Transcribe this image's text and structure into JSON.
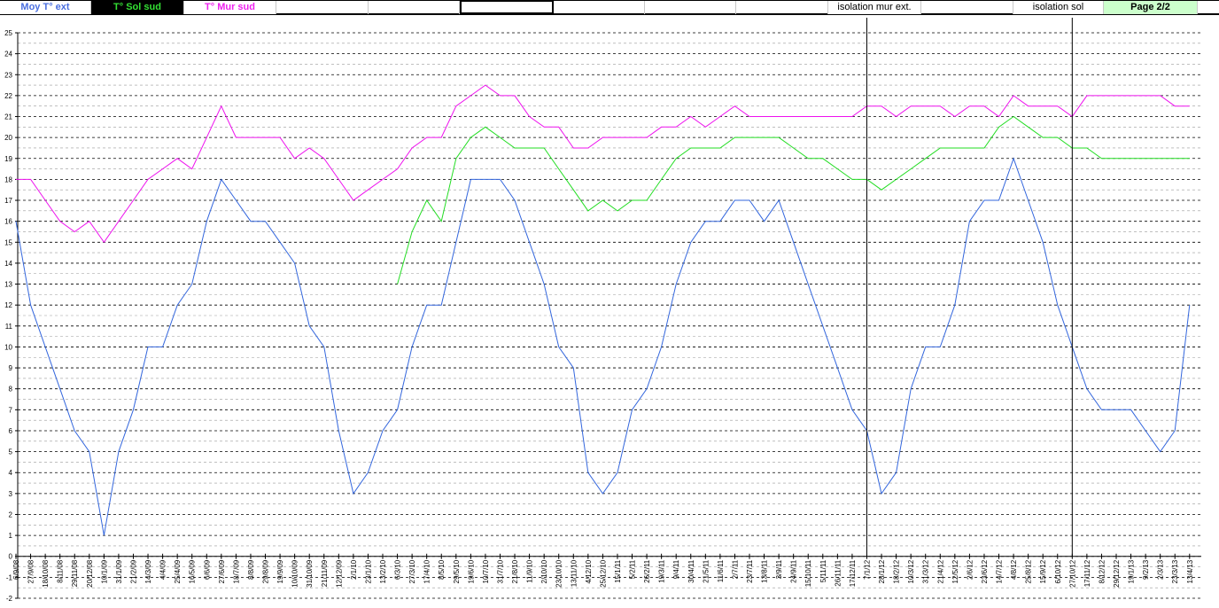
{
  "header": {
    "cells": [
      {
        "label": "Moy T° ext",
        "color": "#4a6fe0",
        "bg": "#ffffff"
      },
      {
        "label": "T° Sol sud",
        "color": "#33e033",
        "bg": "#000000"
      },
      {
        "label": "T° Mur sud",
        "color": "#ee22ee",
        "bg": "#ffffff"
      },
      {
        "label": "isolation mur ext.",
        "color": "#000000",
        "bg": "#ffffff"
      },
      {
        "label": "isolation sol",
        "color": "#000000",
        "bg": "#ffffff"
      },
      {
        "label": "Page 2/2",
        "color": "#000000",
        "bg": "#ccffcc"
      }
    ]
  },
  "chart_data": {
    "type": "line",
    "ylim": [
      -2,
      25
    ],
    "yticks": [
      "-2",
      "-1",
      "0",
      "1",
      "2",
      "3",
      "4",
      "5",
      "6",
      "7",
      "8",
      "9",
      "10",
      "11",
      "12",
      "13",
      "14",
      "15",
      "16",
      "17",
      "18",
      "19",
      "20",
      "21",
      "22",
      "23",
      "24",
      "25"
    ],
    "grid": true,
    "x": [
      "6/9/08",
      "27/9/08",
      "18/10/08",
      "8/11/08",
      "29/11/08",
      "20/12/08",
      "10/1/09",
      "31/1/09",
      "21/2/09",
      "14/3/09",
      "4/4/09",
      "25/4/09",
      "16/5/09",
      "6/6/09",
      "27/6/09",
      "18/7/09",
      "8/8/09",
      "29/8/09",
      "19/9/09",
      "10/10/09",
      "31/10/09",
      "21/11/09",
      "12/12/09",
      "2/1/10",
      "23/1/10",
      "13/2/10",
      "6/3/10",
      "27/3/10",
      "17/4/10",
      "8/5/10",
      "29/5/10",
      "19/6/10",
      "10/7/10",
      "31/7/10",
      "21/8/10",
      "11/9/10",
      "2/10/10",
      "23/10/10",
      "13/11/10",
      "4/12/10",
      "25/12/10",
      "15/1/11",
      "5/2/11",
      "26/2/11",
      "19/3/11",
      "9/4/11",
      "30/4/11",
      "21/5/11",
      "11/6/11",
      "2/7/11",
      "23/7/11",
      "13/8/11",
      "3/9/11",
      "24/9/11",
      "15/10/11",
      "5/11/11",
      "26/11/11",
      "17/12/11",
      "7/1/12",
      "28/1/12",
      "18/2/12",
      "10/3/12",
      "31/3/12",
      "21/4/12",
      "12/5/12",
      "2/6/12",
      "23/6/12",
      "14/7/12",
      "4/8/12",
      "25/8/12",
      "15/9/12",
      "6/10/12",
      "27/10/12",
      "17/11/12",
      "8/12/12",
      "29/12/12",
      "19/1/13",
      "9/2/13",
      "2/3/13",
      "23/3/13",
      "13/4/13"
    ],
    "series": [
      {
        "name": "Moy T° ext",
        "color": "#3366dd",
        "values": [
          16,
          12,
          10,
          8,
          6,
          5,
          1,
          5,
          7,
          10,
          10,
          12,
          13,
          16,
          18,
          17,
          16,
          16,
          15,
          14,
          11,
          10,
          6,
          3,
          4,
          6,
          7,
          10,
          12,
          12,
          15,
          18,
          18,
          18,
          17,
          15,
          13,
          10,
          9,
          4,
          3,
          4,
          7,
          8,
          10,
          13,
          15,
          16,
          16,
          17,
          17,
          16,
          17,
          15,
          13,
          11,
          9,
          7,
          6,
          3,
          4,
          8,
          10,
          10,
          12,
          16,
          17,
          17,
          19,
          17,
          15,
          12,
          10,
          8,
          7,
          7,
          7,
          6,
          5,
          6,
          12
        ]
      },
      {
        "name": "T° Sol sud",
        "color": "#22dd22",
        "values": [
          null,
          null,
          null,
          null,
          null,
          null,
          null,
          null,
          null,
          null,
          null,
          null,
          null,
          null,
          null,
          null,
          null,
          null,
          null,
          null,
          null,
          null,
          null,
          null,
          null,
          null,
          13,
          15.5,
          17,
          16,
          19,
          20,
          20.5,
          20,
          19.5,
          19.5,
          19.5,
          18.5,
          17.5,
          16.5,
          17,
          16.5,
          17,
          17,
          18,
          19,
          19.5,
          19.5,
          19.5,
          20,
          20,
          20,
          20,
          19.5,
          19,
          19,
          18.5,
          18,
          18,
          17.5,
          18,
          18.5,
          19,
          19.5,
          19.5,
          19.5,
          19.5,
          20.5,
          21,
          20.5,
          20,
          20,
          19.5,
          19.5,
          19,
          19,
          19,
          19,
          19,
          19,
          19
        ]
      },
      {
        "name": "T° Mur sud",
        "color": "#ee11ee",
        "values": [
          18,
          18,
          17,
          16,
          15.5,
          16,
          15,
          16,
          17,
          18,
          18.5,
          19,
          18.5,
          20,
          21.5,
          20,
          20,
          20,
          20,
          19,
          19.5,
          19,
          18,
          17,
          17.5,
          18,
          18.5,
          19.5,
          20,
          20,
          21.5,
          22,
          22.5,
          22,
          22,
          21,
          20.5,
          20.5,
          19.5,
          19.5,
          20,
          20,
          20,
          20,
          20.5,
          20.5,
          21,
          20.5,
          21,
          21.5,
          21,
          21,
          21,
          21,
          21,
          21,
          21,
          21,
          21.5,
          21.5,
          21,
          21.5,
          21.5,
          21.5,
          21,
          21.5,
          21.5,
          21,
          22,
          21.5,
          21.5,
          21.5,
          21,
          22,
          22,
          22,
          22,
          22,
          22,
          21.5,
          21.5
        ]
      }
    ],
    "annotations": [
      {
        "label": "isolation mur ext.",
        "x": "7/1/12"
      },
      {
        "label": "isolation sol",
        "x": "27/10/12"
      }
    ]
  }
}
